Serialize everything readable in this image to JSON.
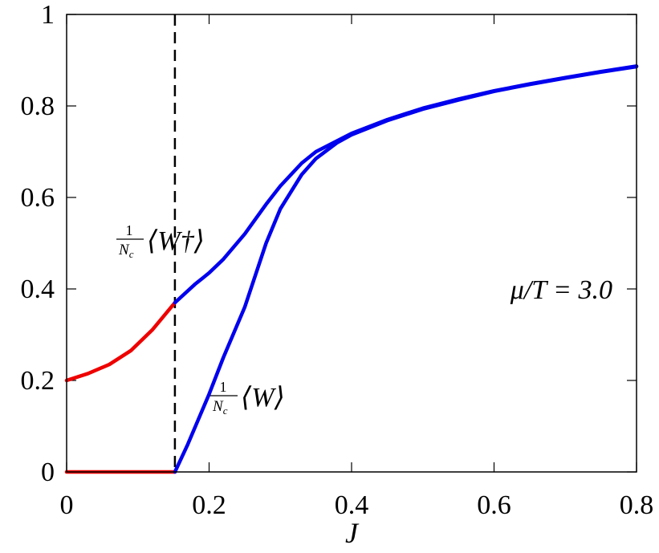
{
  "chart_data": {
    "type": "line",
    "xlabel": "J",
    "xlim": [
      0,
      0.8
    ],
    "xticks": [
      0,
      0.2,
      0.4,
      0.6,
      0.8
    ],
    "ylim": [
      0,
      1
    ],
    "yticks": [
      0,
      0.2,
      0.4,
      0.6,
      0.8,
      1
    ],
    "vline": 0.152,
    "series": [
      {
        "color": "#ee0000",
        "x": [
          0,
          0.03,
          0.06,
          0.09,
          0.12,
          0.152
        ],
        "values": [
          0.2,
          0.215,
          0.235,
          0.265,
          0.31,
          0.37
        ]
      },
      {
        "color": "#0000ee",
        "x": [
          0.152,
          0.18,
          0.2,
          0.22,
          0.25,
          0.28,
          0.3,
          0.33,
          0.35,
          0.4,
          0.45,
          0.5,
          0.55,
          0.6,
          0.65,
          0.7,
          0.75,
          0.8
        ],
        "values": [
          0.37,
          0.41,
          0.435,
          0.465,
          0.52,
          0.585,
          0.625,
          0.675,
          0.7,
          0.74,
          0.77,
          0.795,
          0.815,
          0.833,
          0.848,
          0.862,
          0.875,
          0.887
        ]
      },
      {
        "color": "#ee0000",
        "x": [
          0,
          0.152
        ],
        "values": [
          0,
          0
        ]
      },
      {
        "color": "#0000ee",
        "x": [
          0.152,
          0.17,
          0.2,
          0.22,
          0.25,
          0.28,
          0.3,
          0.33,
          0.35,
          0.38,
          0.4,
          0.45,
          0.5,
          0.55,
          0.6,
          0.65,
          0.7,
          0.75,
          0.8
        ],
        "values": [
          0,
          0.06,
          0.17,
          0.25,
          0.36,
          0.5,
          0.575,
          0.65,
          0.685,
          0.72,
          0.737,
          0.768,
          0.793,
          0.813,
          0.832,
          0.847,
          0.861,
          0.874,
          0.886
        ]
      }
    ],
    "annotations": [
      {
        "numerator": "1",
        "denominator": "N",
        "denominator_sub": "c",
        "body": "⟨W†⟩"
      },
      {
        "numerator": "1",
        "denominator": "N",
        "denominator_sub": "c",
        "body": "⟨W⟩"
      },
      {
        "text": "μ/T = 3.0"
      }
    ]
  }
}
